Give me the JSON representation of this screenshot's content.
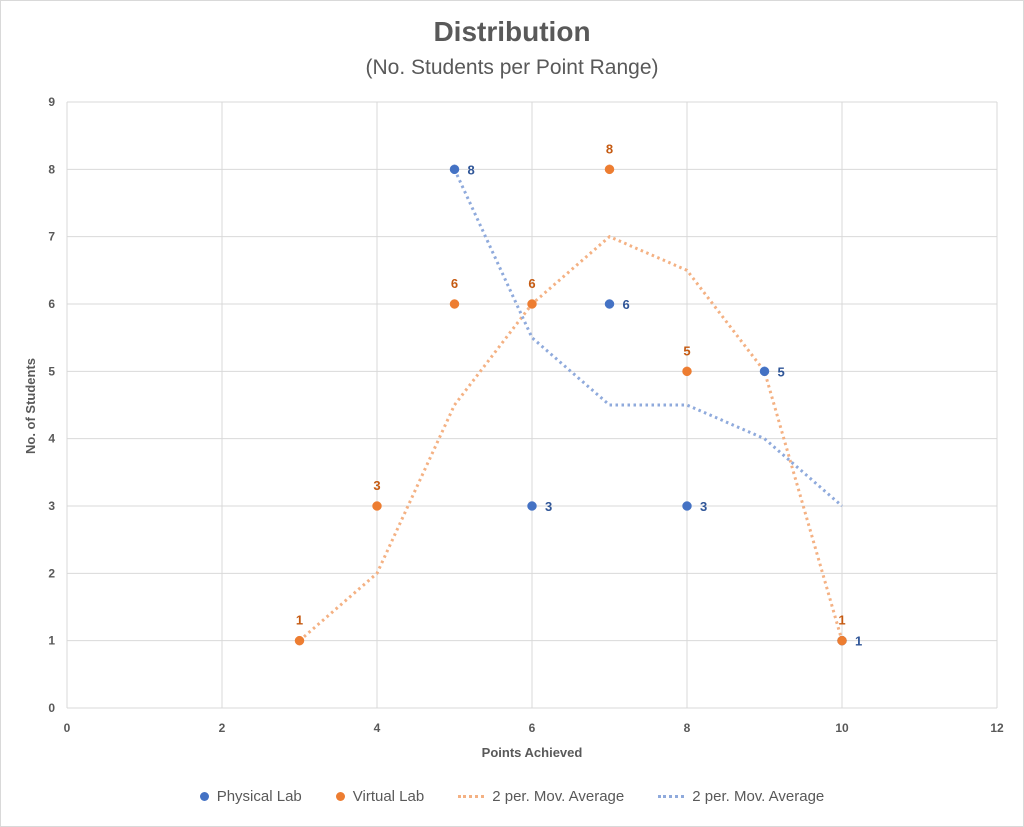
{
  "chart_data": {
    "type": "scatter",
    "title": "Distribution",
    "subtitle": "(No. Students per Point Range)",
    "xlabel": "Points Achieved",
    "ylabel": "No. of Students",
    "xlim": [
      0,
      12
    ],
    "ylim": [
      0,
      9
    ],
    "xticks": [
      0,
      2,
      4,
      6,
      8,
      10,
      12
    ],
    "yticks": [
      0,
      1,
      2,
      3,
      4,
      5,
      6,
      7,
      8,
      9
    ],
    "grid": true,
    "legend_position": "bottom",
    "series": [
      {
        "name": "Physical Lab",
        "kind": "scatter",
        "color": "#4472c4",
        "x": [
          5,
          6,
          7,
          8,
          9,
          10
        ],
        "y": [
          8,
          3,
          6,
          3,
          5,
          1
        ],
        "data_labels": [
          "8",
          "3",
          "6",
          "3",
          "5",
          "1"
        ]
      },
      {
        "name": "Virtual Lab",
        "kind": "scatter",
        "color": "#ed7d31",
        "label_color": "#c55a11",
        "x": [
          3,
          4,
          5,
          6,
          7,
          8,
          10
        ],
        "y": [
          1,
          3,
          6,
          6,
          8,
          5,
          1
        ],
        "data_labels": [
          "1",
          "3",
          "6",
          "6",
          "8",
          "5",
          "1"
        ]
      },
      {
        "name": "2 per. Mov. Average",
        "kind": "trend",
        "color": "#f4b183",
        "x": [
          3,
          4,
          5,
          6,
          7,
          8,
          9,
          10
        ],
        "y": [
          1,
          2,
          4.5,
          6,
          7,
          6.5,
          5,
          1
        ]
      },
      {
        "name": "2 per. Mov. Average",
        "kind": "trend",
        "color": "#8faadc",
        "x": [
          5,
          6,
          7,
          8,
          9,
          10
        ],
        "y": [
          8,
          5.5,
          4.5,
          4.5,
          4,
          3
        ]
      }
    ]
  },
  "legend": {
    "items": [
      {
        "label": "Physical Lab",
        "type": "dot",
        "color": "#4472c4"
      },
      {
        "label": "Virtual Lab",
        "type": "dot",
        "color": "#ed7d31"
      },
      {
        "label": "2 per. Mov. Average",
        "type": "line",
        "color": "#f4b183"
      },
      {
        "label": "2 per. Mov. Average",
        "type": "line",
        "color": "#8faadc"
      }
    ]
  }
}
